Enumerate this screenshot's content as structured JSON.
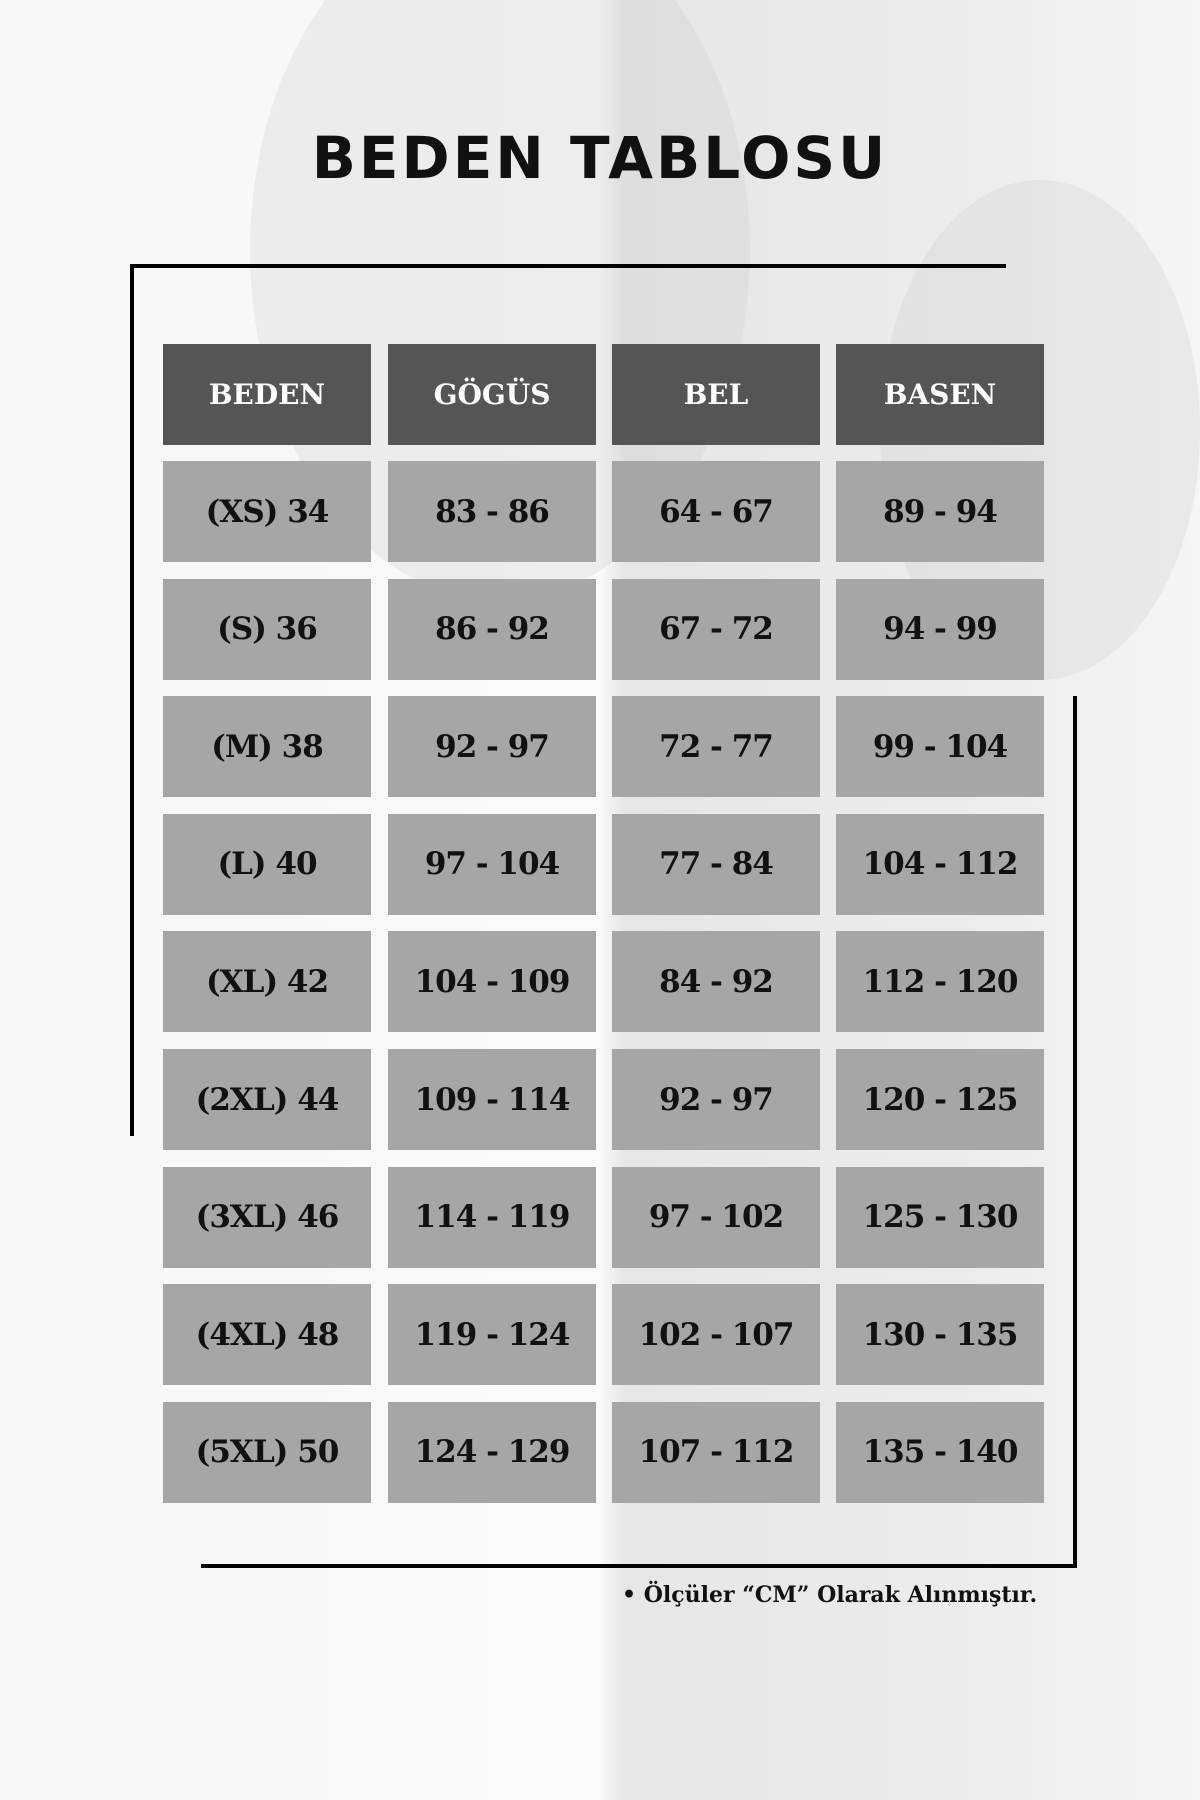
{
  "title": "BEDEN TABLOSU",
  "table": {
    "headers": [
      "BEDEN",
      "GÖGÜS",
      "BEL",
      "BASEN"
    ],
    "rows": [
      [
        "(XS) 34",
        "83 - 86",
        "64 - 67",
        "89 - 94"
      ],
      [
        "(S) 36",
        "86 - 92",
        "67 - 72",
        "94 - 99"
      ],
      [
        "(M) 38",
        "92 - 97",
        "72 - 77",
        "99 - 104"
      ],
      [
        "(L) 40",
        "97 - 104",
        "77 - 84",
        "104 - 112"
      ],
      [
        "(XL) 42",
        "104 - 109",
        "84 - 92",
        "112 - 120"
      ],
      [
        "(2XL) 44",
        "109 - 114",
        "92 - 97",
        "120 - 125"
      ],
      [
        "(3XL) 46",
        "114 - 119",
        "97 - 102",
        "125 - 130"
      ],
      [
        "(4XL) 48",
        "119 - 124",
        "102 - 107",
        "130 - 135"
      ],
      [
        "(5XL) 50",
        "124 - 129",
        "107 - 112",
        "135 - 140"
      ]
    ]
  },
  "note": "• Ölçüler “CM” Olarak Alınmıştır.",
  "colors": {
    "header": "#555555",
    "cell": "#a6a6a6"
  }
}
